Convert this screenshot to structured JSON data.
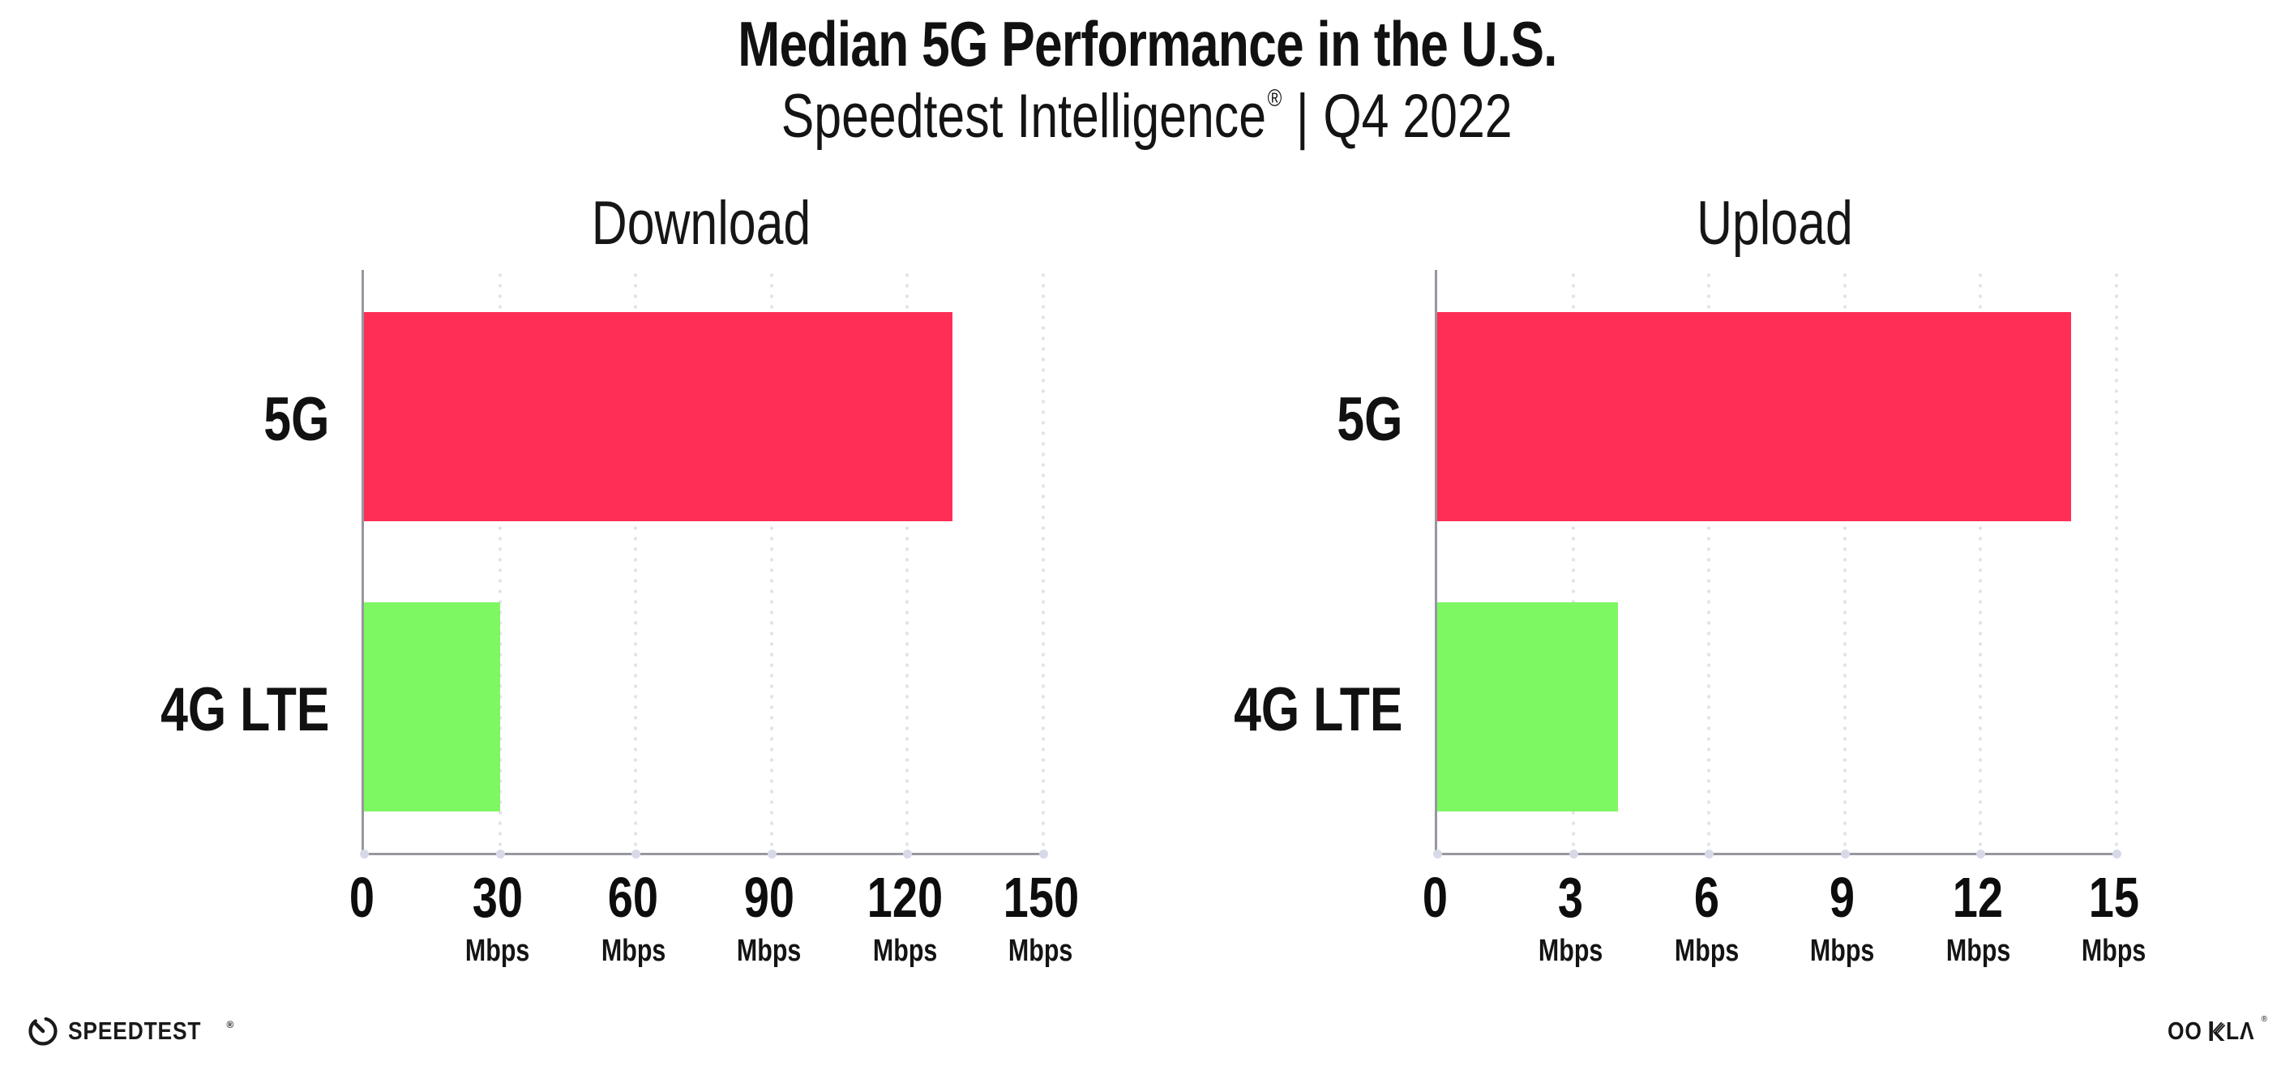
{
  "header": {
    "title": "Median 5G Performance in the U.S.",
    "subtitle_brand": "Speedtest Intelligence",
    "subtitle_reg": "®",
    "subtitle_sep": "|",
    "subtitle_period": "Q4 2022"
  },
  "colors": {
    "bar_5g": "#FF2E56",
    "bar_4g": "#7DF862",
    "axis": "#97979F",
    "grid_dot": "#E2E2EE",
    "axis_dot": "#D7D9E8",
    "text": "#111111"
  },
  "chart_data": [
    {
      "type": "bar",
      "orientation": "horizontal",
      "title": "Download",
      "categories": [
        "5G",
        "4G LTE"
      ],
      "values": [
        130,
        30
      ],
      "values_unit": "Mbps",
      "series_colors": [
        "#FF2E56",
        "#7DF862"
      ],
      "xlim": [
        0,
        150
      ],
      "grid": "dotted-vertical",
      "legend": "none",
      "ticks": [
        {
          "label": "0",
          "unit": ""
        },
        {
          "label": "30",
          "unit": "Mbps"
        },
        {
          "label": "60",
          "unit": "Mbps"
        },
        {
          "label": "90",
          "unit": "Mbps"
        },
        {
          "label": "120",
          "unit": "Mbps"
        },
        {
          "label": "150",
          "unit": "Mbps"
        }
      ]
    },
    {
      "type": "bar",
      "orientation": "horizontal",
      "title": "Upload",
      "categories": [
        "5G",
        "4G LTE"
      ],
      "values": [
        14,
        4
      ],
      "values_unit": "Mbps",
      "series_colors": [
        "#FF2E56",
        "#7DF862"
      ],
      "xlim": [
        0,
        15
      ],
      "grid": "dotted-vertical",
      "legend": "none",
      "ticks": [
        {
          "label": "0",
          "unit": ""
        },
        {
          "label": "3",
          "unit": "Mbps"
        },
        {
          "label": "6",
          "unit": "Mbps"
        },
        {
          "label": "9",
          "unit": "Mbps"
        },
        {
          "label": "12",
          "unit": "Mbps"
        },
        {
          "label": "15",
          "unit": "Mbps"
        }
      ]
    }
  ],
  "footer": {
    "speedtest_logo_text": "SPEEDTEST",
    "speedtest_reg": "®",
    "ookla_left": "OO",
    "ookla_right": "LΛ",
    "ookla_reg": "®"
  }
}
